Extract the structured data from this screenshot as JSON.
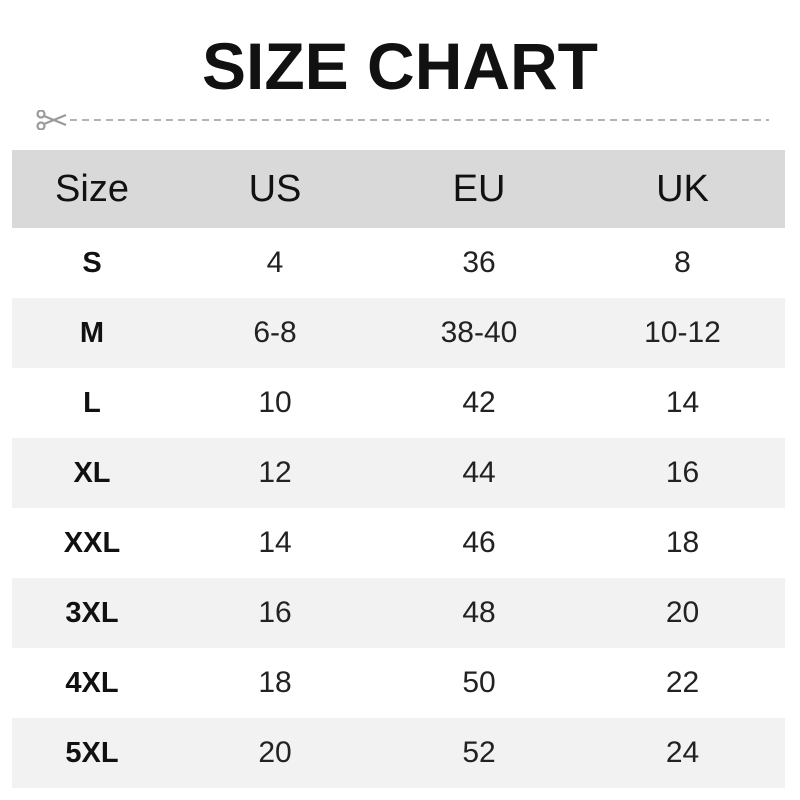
{
  "title": "SIZE CHART",
  "icons": {
    "cut": "scissors-icon"
  },
  "colors": {
    "header_bg": "#d9d9d9",
    "stripe_bg": "#f2f2f2",
    "cutline": "#9a9a9a"
  },
  "table": {
    "headers": [
      "Size",
      "US",
      "EU",
      "UK"
    ],
    "rows": [
      [
        "S",
        "4",
        "36",
        "8"
      ],
      [
        "M",
        "6-8",
        "38-40",
        "10-12"
      ],
      [
        "L",
        "10",
        "42",
        "14"
      ],
      [
        "XL",
        "12",
        "44",
        "16"
      ],
      [
        "XXL",
        "14",
        "46",
        "18"
      ],
      [
        "3XL",
        "16",
        "48",
        "20"
      ],
      [
        "4XL",
        "18",
        "50",
        "22"
      ],
      [
        "5XL",
        "20",
        "52",
        "24"
      ]
    ]
  }
}
